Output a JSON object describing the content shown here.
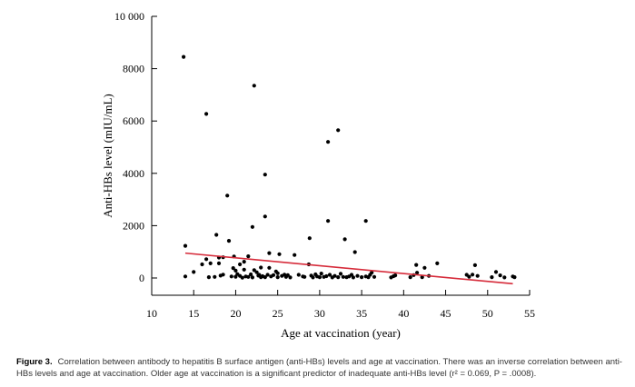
{
  "chart_data": {
    "type": "scatter",
    "xlabel": "Age at vaccination (year)",
    "ylabel": "Anti-HBs level (mIU/mL)",
    "xlim": [
      10,
      55
    ],
    "ylim": [
      0,
      10000
    ],
    "x_ticks": [
      10,
      15,
      20,
      25,
      30,
      35,
      40,
      45,
      50,
      55
    ],
    "y_ticks": [
      0,
      2000,
      4000,
      6000,
      8000,
      10000
    ],
    "y_tick_labels": [
      "0",
      "2000",
      "4000",
      "6000",
      "8000",
      "10 000"
    ],
    "grid": false,
    "marker_color": "#000000",
    "trend_color": "#d62b3a",
    "trend_line": {
      "x": [
        14,
        53
      ],
      "y": [
        950,
        -220
      ]
    },
    "points": [
      [
        13.8,
        8450
      ],
      [
        14,
        1230
      ],
      [
        14,
        60
      ],
      [
        15,
        230
      ],
      [
        16,
        520
      ],
      [
        16.5,
        6270
      ],
      [
        16.5,
        720
      ],
      [
        16.8,
        30
      ],
      [
        17,
        560
      ],
      [
        17.5,
        40
      ],
      [
        17.7,
        1650
      ],
      [
        18,
        780
      ],
      [
        18,
        560
      ],
      [
        18.2,
        90
      ],
      [
        18.5,
        130
      ],
      [
        18.5,
        790
      ],
      [
        19,
        3150
      ],
      [
        19.2,
        1420
      ],
      [
        19.5,
        60
      ],
      [
        19.7,
        380
      ],
      [
        19.8,
        820
      ],
      [
        20,
        50
      ],
      [
        20,
        280
      ],
      [
        20.2,
        150
      ],
      [
        20.5,
        520
      ],
      [
        20.5,
        80
      ],
      [
        20.8,
        10
      ],
      [
        21,
        320
      ],
      [
        21,
        620
      ],
      [
        21.2,
        60
      ],
      [
        21.5,
        830
      ],
      [
        21.5,
        40
      ],
      [
        21.8,
        140
      ],
      [
        22,
        1950
      ],
      [
        22,
        20
      ],
      [
        22.2,
        7350
      ],
      [
        22.2,
        300
      ],
      [
        22.5,
        220
      ],
      [
        22.7,
        90
      ],
      [
        22.8,
        120
      ],
      [
        23,
        30
      ],
      [
        23,
        400
      ],
      [
        23.2,
        70
      ],
      [
        23.5,
        3950
      ],
      [
        23.5,
        2350
      ],
      [
        23.5,
        30
      ],
      [
        23.8,
        120
      ],
      [
        24,
        950
      ],
      [
        24,
        390
      ],
      [
        24.2,
        60
      ],
      [
        24.5,
        110
      ],
      [
        24.8,
        250
      ],
      [
        25,
        30
      ],
      [
        25,
        180
      ],
      [
        25.2,
        910
      ],
      [
        25.5,
        80
      ],
      [
        25.8,
        130
      ],
      [
        26,
        40
      ],
      [
        26.2,
        110
      ],
      [
        26.5,
        20
      ],
      [
        27,
        880
      ],
      [
        27.5,
        120
      ],
      [
        28,
        60
      ],
      [
        28.2,
        40
      ],
      [
        28.7,
        520
      ],
      [
        28.8,
        1520
      ],
      [
        29,
        90
      ],
      [
        29.2,
        20
      ],
      [
        29.5,
        140
      ],
      [
        29.7,
        60
      ],
      [
        30,
        30
      ],
      [
        30.2,
        170
      ],
      [
        30.5,
        40
      ],
      [
        30.8,
        70
      ],
      [
        31,
        5200
      ],
      [
        31,
        2180
      ],
      [
        31.2,
        120
      ],
      [
        31.5,
        20
      ],
      [
        31.8,
        80
      ],
      [
        32.2,
        5650
      ],
      [
        32.2,
        30
      ],
      [
        32.5,
        160
      ],
      [
        32.8,
        40
      ],
      [
        33,
        1480
      ],
      [
        33.2,
        30
      ],
      [
        33.5,
        60
      ],
      [
        33.8,
        120
      ],
      [
        34,
        20
      ],
      [
        34.2,
        990
      ],
      [
        34.5,
        80
      ],
      [
        35,
        30
      ],
      [
        35.5,
        2180
      ],
      [
        35.5,
        60
      ],
      [
        35.8,
        30
      ],
      [
        36,
        120
      ],
      [
        36.2,
        210
      ],
      [
        36.5,
        40
      ],
      [
        38.5,
        20
      ],
      [
        38.8,
        70
      ],
      [
        39,
        100
      ],
      [
        40.8,
        30
      ],
      [
        41.2,
        110
      ],
      [
        41.5,
        500
      ],
      [
        41.6,
        200
      ],
      [
        42.2,
        30
      ],
      [
        42.5,
        390
      ],
      [
        43,
        80
      ],
      [
        44,
        560
      ],
      [
        47.5,
        120
      ],
      [
        47.8,
        50
      ],
      [
        48.2,
        130
      ],
      [
        48.5,
        490
      ],
      [
        48.8,
        80
      ],
      [
        50.5,
        30
      ],
      [
        51,
        230
      ],
      [
        51.5,
        100
      ],
      [
        52,
        20
      ],
      [
        53,
        60
      ],
      [
        53.2,
        30
      ]
    ]
  },
  "caption": {
    "label": "Figure 3.",
    "text": "Correlation between antibody to hepatitis B surface antigen (anti-HBs) levels and age at vaccination. There was an inverse correlation between anti-HBs levels and age at vaccination. Older age at vaccination is a significant predictor of inadequate anti-HBs level (r² = 0.069, P = .0008)."
  }
}
